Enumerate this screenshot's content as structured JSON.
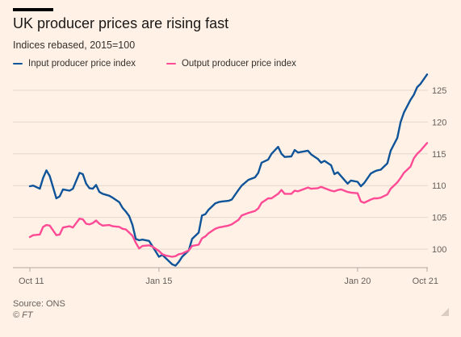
{
  "title": "UK producer prices are rising fast",
  "subtitle": "Indices rebased, 2015=100",
  "legend": {
    "input": "Input producer price index",
    "output": "Output producer price index"
  },
  "colors": {
    "input": "#0F5499",
    "output": "#FF4A95",
    "grid": "#E4D8CD",
    "axis": "#66605C",
    "background": "#FFF1E5"
  },
  "footer": {
    "source": "Source: ONS",
    "credit": "© FT"
  },
  "chart_data": {
    "type": "line",
    "title": "UK producer prices are rising fast",
    "subtitle": "Indices rebased, 2015=100",
    "xlabel": "",
    "ylabel": "",
    "x_start": "2011-10",
    "x_end": "2021-10",
    "x_ticks": [
      {
        "label": "Oct 11",
        "date": "2011-10"
      },
      {
        "label": "Jan 15",
        "date": "2015-01"
      },
      {
        "label": "Jan 20",
        "date": "2020-01"
      },
      {
        "label": "Oct 21",
        "date": "2021-10"
      }
    ],
    "y_ticks": [
      100,
      105,
      110,
      115,
      120,
      125
    ],
    "ylim": [
      97,
      127.5
    ],
    "grid": true,
    "y_axis_side": "right",
    "legend_position": "top-left",
    "series": [
      {
        "name": "Input producer price index",
        "color": "#0F5499",
        "points": [
          [
            "2011-10",
            109.9
          ],
          [
            "2011-11",
            110.0
          ],
          [
            "2012-01",
            109.5
          ],
          [
            "2012-02",
            111.2
          ],
          [
            "2012-03",
            112.4
          ],
          [
            "2012-04",
            111.5
          ],
          [
            "2012-06",
            108.0
          ],
          [
            "2012-07",
            108.3
          ],
          [
            "2012-08",
            109.4
          ],
          [
            "2012-10",
            109.2
          ],
          [
            "2012-11",
            109.5
          ],
          [
            "2013-01",
            112.0
          ],
          [
            "2013-02",
            111.8
          ],
          [
            "2013-03",
            110.3
          ],
          [
            "2013-04",
            109.6
          ],
          [
            "2013-05",
            109.5
          ],
          [
            "2013-06",
            110.1
          ],
          [
            "2013-07",
            109.0
          ],
          [
            "2013-08",
            108.7
          ],
          [
            "2013-10",
            108.4
          ],
          [
            "2013-11",
            108.1
          ],
          [
            "2014-01",
            107.4
          ],
          [
            "2014-02",
            106.5
          ],
          [
            "2014-03",
            105.9
          ],
          [
            "2014-04",
            105.2
          ],
          [
            "2014-05",
            103.8
          ],
          [
            "2014-06",
            101.6
          ],
          [
            "2014-07",
            101.4
          ],
          [
            "2014-08",
            101.5
          ],
          [
            "2014-10",
            101.3
          ],
          [
            "2014-11",
            100.5
          ],
          [
            "2015-01",
            98.8
          ],
          [
            "2015-02",
            99.1
          ],
          [
            "2015-03",
            98.6
          ],
          [
            "2015-05",
            97.6
          ],
          [
            "2015-06",
            97.4
          ],
          [
            "2015-07",
            98.0
          ],
          [
            "2015-08",
            98.8
          ],
          [
            "2015-10",
            99.8
          ],
          [
            "2015-11",
            101.6
          ],
          [
            "2016-01",
            102.6
          ],
          [
            "2016-02",
            105.3
          ],
          [
            "2016-03",
            105.5
          ],
          [
            "2016-04",
            106.2
          ],
          [
            "2016-06",
            107.2
          ],
          [
            "2016-07",
            107.4
          ],
          [
            "2016-08",
            107.5
          ],
          [
            "2016-10",
            107.6
          ],
          [
            "2016-11",
            107.8
          ],
          [
            "2017-01",
            109.3
          ],
          [
            "2017-02",
            110.0
          ],
          [
            "2017-04",
            110.9
          ],
          [
            "2017-06",
            111.3
          ],
          [
            "2017-07",
            112.0
          ],
          [
            "2017-08",
            113.6
          ],
          [
            "2017-10",
            114.1
          ],
          [
            "2017-11",
            115.0
          ],
          [
            "2018-01",
            116.1
          ],
          [
            "2018-02",
            115.0
          ],
          [
            "2018-03",
            114.5
          ],
          [
            "2018-05",
            114.6
          ],
          [
            "2018-06",
            115.6
          ],
          [
            "2018-07",
            115.2
          ],
          [
            "2018-08",
            115.3
          ],
          [
            "2018-10",
            115.5
          ],
          [
            "2018-11",
            114.9
          ],
          [
            "2019-01",
            114.2
          ],
          [
            "2019-02",
            113.6
          ],
          [
            "2019-03",
            113.9
          ],
          [
            "2019-05",
            113.2
          ],
          [
            "2019-06",
            111.8
          ],
          [
            "2019-07",
            112.1
          ],
          [
            "2019-08",
            111.5
          ],
          [
            "2019-10",
            110.3
          ],
          [
            "2019-11",
            110.8
          ],
          [
            "2020-01",
            110.6
          ],
          [
            "2020-02",
            109.9
          ],
          [
            "2020-03",
            110.4
          ],
          [
            "2020-05",
            111.9
          ],
          [
            "2020-06",
            112.2
          ],
          [
            "2020-07",
            112.4
          ],
          [
            "2020-08",
            112.5
          ],
          [
            "2020-10",
            113.5
          ],
          [
            "2020-11",
            115.5
          ],
          [
            "2021-01",
            117.5
          ],
          [
            "2021-02",
            120.0
          ],
          [
            "2021-03",
            121.5
          ],
          [
            "2021-05",
            123.5
          ],
          [
            "2021-06",
            124.3
          ],
          [
            "2021-07",
            125.5
          ],
          [
            "2021-08",
            126.0
          ],
          [
            "2021-10",
            127.5
          ]
        ]
      },
      {
        "name": "Output producer price index",
        "color": "#FF4A95",
        "points": [
          [
            "2011-10",
            101.9
          ],
          [
            "2011-11",
            102.2
          ],
          [
            "2012-01",
            102.3
          ],
          [
            "2012-02",
            103.5
          ],
          [
            "2012-03",
            103.8
          ],
          [
            "2012-04",
            103.7
          ],
          [
            "2012-06",
            102.2
          ],
          [
            "2012-07",
            102.3
          ],
          [
            "2012-08",
            103.4
          ],
          [
            "2012-10",
            103.6
          ],
          [
            "2012-11",
            103.4
          ],
          [
            "2013-01",
            104.8
          ],
          [
            "2013-02",
            104.7
          ],
          [
            "2013-03",
            104.0
          ],
          [
            "2013-04",
            103.9
          ],
          [
            "2013-05",
            104.1
          ],
          [
            "2013-06",
            104.5
          ],
          [
            "2013-07",
            104.0
          ],
          [
            "2013-08",
            103.7
          ],
          [
            "2013-10",
            103.8
          ],
          [
            "2013-11",
            103.6
          ],
          [
            "2014-01",
            103.5
          ],
          [
            "2014-02",
            103.2
          ],
          [
            "2014-03",
            103.1
          ],
          [
            "2014-04",
            102.6
          ],
          [
            "2014-05",
            102.1
          ],
          [
            "2014-06",
            101.0
          ],
          [
            "2014-07",
            100.1
          ],
          [
            "2014-08",
            100.5
          ],
          [
            "2014-10",
            100.6
          ],
          [
            "2014-11",
            100.4
          ],
          [
            "2015-01",
            99.7
          ],
          [
            "2015-02",
            99.2
          ],
          [
            "2015-03",
            99.0
          ],
          [
            "2015-05",
            98.8
          ],
          [
            "2015-06",
            98.9
          ],
          [
            "2015-07",
            99.2
          ],
          [
            "2015-08",
            99.3
          ],
          [
            "2015-10",
            99.8
          ],
          [
            "2015-11",
            100.5
          ],
          [
            "2016-01",
            100.7
          ],
          [
            "2016-02",
            101.7
          ],
          [
            "2016-03",
            102.0
          ],
          [
            "2016-04",
            102.5
          ],
          [
            "2016-06",
            103.2
          ],
          [
            "2016-07",
            103.4
          ],
          [
            "2016-08",
            103.5
          ],
          [
            "2016-10",
            103.7
          ],
          [
            "2016-11",
            103.9
          ],
          [
            "2017-01",
            104.6
          ],
          [
            "2017-02",
            105.3
          ],
          [
            "2017-04",
            105.7
          ],
          [
            "2017-06",
            106.0
          ],
          [
            "2017-07",
            106.4
          ],
          [
            "2017-08",
            107.3
          ],
          [
            "2017-10",
            108.0
          ],
          [
            "2017-11",
            108.0
          ],
          [
            "2018-01",
            108.7
          ],
          [
            "2018-02",
            109.3
          ],
          [
            "2018-03",
            108.7
          ],
          [
            "2018-05",
            108.7
          ],
          [
            "2018-06",
            109.2
          ],
          [
            "2018-07",
            109.1
          ],
          [
            "2018-08",
            109.3
          ],
          [
            "2018-10",
            109.7
          ],
          [
            "2018-11",
            109.5
          ],
          [
            "2019-01",
            109.6
          ],
          [
            "2019-02",
            109.8
          ],
          [
            "2019-03",
            109.6
          ],
          [
            "2019-05",
            109.2
          ],
          [
            "2019-06",
            109.1
          ],
          [
            "2019-07",
            109.3
          ],
          [
            "2019-08",
            109.4
          ],
          [
            "2019-10",
            109.0
          ],
          [
            "2019-11",
            108.9
          ],
          [
            "2020-01",
            108.8
          ],
          [
            "2020-02",
            107.5
          ],
          [
            "2020-03",
            107.3
          ],
          [
            "2020-05",
            107.8
          ],
          [
            "2020-06",
            108.0
          ],
          [
            "2020-07",
            108.0
          ],
          [
            "2020-08",
            108.1
          ],
          [
            "2020-10",
            108.6
          ],
          [
            "2020-11",
            109.5
          ],
          [
            "2021-01",
            110.5
          ],
          [
            "2021-02",
            111.2
          ],
          [
            "2021-03",
            112.0
          ],
          [
            "2021-05",
            113.0
          ],
          [
            "2021-06",
            114.3
          ],
          [
            "2021-07",
            115.0
          ],
          [
            "2021-08",
            115.5
          ],
          [
            "2021-10",
            116.7
          ]
        ]
      }
    ]
  }
}
